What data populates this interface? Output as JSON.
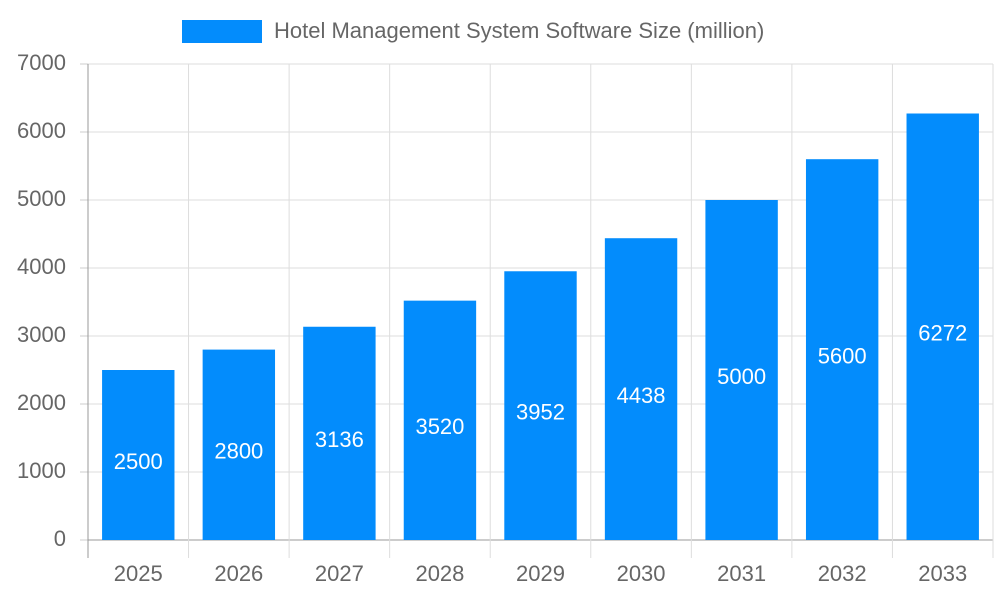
{
  "chart_data": {
    "type": "bar",
    "categories": [
      "2025",
      "2026",
      "2027",
      "2028",
      "2029",
      "2030",
      "2031",
      "2032",
      "2033"
    ],
    "series": [
      {
        "name": "Hotel Management System Software Size (million)",
        "color": "#038cfc",
        "values": [
          2500,
          2800,
          3136,
          3520,
          3952,
          4438,
          5000,
          5600,
          6272
        ]
      }
    ],
    "ylim": [
      0,
      7000
    ],
    "yticks": [
      0,
      1000,
      2000,
      3000,
      4000,
      5000,
      6000,
      7000
    ],
    "grid": true,
    "legend": "top",
    "data_labels": true
  }
}
